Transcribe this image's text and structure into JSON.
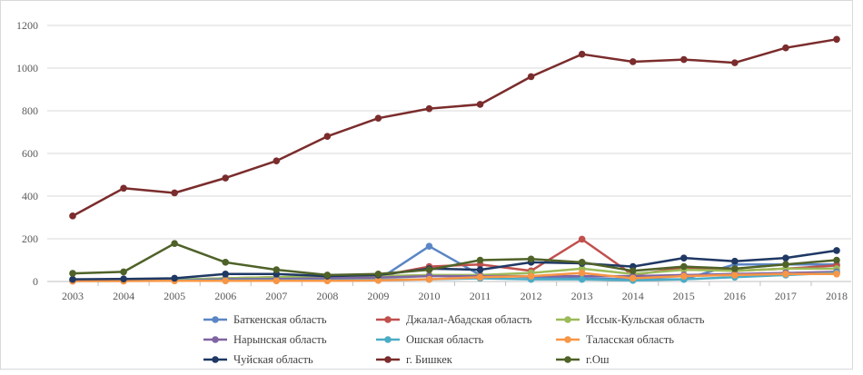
{
  "chart_data": {
    "type": "line",
    "title": "",
    "xlabel": "",
    "ylabel": "",
    "x": [
      "2003",
      "2004",
      "2005",
      "2006",
      "2007",
      "2008",
      "2009",
      "2010",
      "2011",
      "2012",
      "2013",
      "2014",
      "2015",
      "2016",
      "2017",
      "2018"
    ],
    "ylim": [
      0,
      1200
    ],
    "yticks": [
      0,
      200,
      400,
      600,
      800,
      1000,
      1200
    ],
    "grid": true,
    "legend": "bottom",
    "series": [
      {
        "name": "Баткенская область",
        "color": "#5B86C5",
        "values": [
          2,
          3,
          5,
          8,
          10,
          12,
          8,
          165,
          30,
          20,
          15,
          10,
          10,
          80,
          80,
          80
        ]
      },
      {
        "name": "Джалал-Абадская область",
        "color": "#C0504D",
        "values": [
          5,
          5,
          8,
          15,
          20,
          20,
          25,
          70,
          80,
          50,
          198,
          30,
          65,
          50,
          60,
          75
        ]
      },
      {
        "name": "Иссык-Кульская область",
        "color": "#9BBB59",
        "values": [
          5,
          5,
          8,
          15,
          20,
          25,
          25,
          30,
          30,
          40,
          60,
          35,
          55,
          50,
          60,
          60
        ]
      },
      {
        "name": "Нарынская область",
        "color": "#8064A2",
        "values": [
          3,
          3,
          5,
          10,
          12,
          15,
          18,
          25,
          25,
          25,
          25,
          25,
          30,
          35,
          40,
          45
        ]
      },
      {
        "name": "Ошская область",
        "color": "#4BACC6",
        "values": [
          3,
          5,
          5,
          5,
          5,
          5,
          8,
          10,
          15,
          10,
          10,
          5,
          10,
          20,
          30,
          40
        ]
      },
      {
        "name": "Таласская область",
        "color": "#F79646",
        "values": [
          2,
          2,
          3,
          3,
          3,
          3,
          5,
          10,
          20,
          25,
          40,
          15,
          25,
          30,
          35,
          35
        ]
      },
      {
        "name": "Чуйская область",
        "color": "#1F3864",
        "values": [
          10,
          12,
          15,
          35,
          35,
          25,
          30,
          60,
          55,
          90,
          85,
          70,
          110,
          95,
          110,
          145
        ]
      },
      {
        "name": "г. Бишкек",
        "color": "#7B2C2C",
        "values": [
          307,
          437,
          415,
          485,
          565,
          680,
          765,
          810,
          830,
          960,
          1065,
          1030,
          1040,
          1025,
          1095,
          1135
        ]
      },
      {
        "name": "г.Ош",
        "color": "#4F6228",
        "values": [
          38,
          45,
          178,
          90,
          55,
          30,
          35,
          55,
          100,
          105,
          90,
          50,
          70,
          60,
          80,
          100
        ]
      }
    ]
  }
}
